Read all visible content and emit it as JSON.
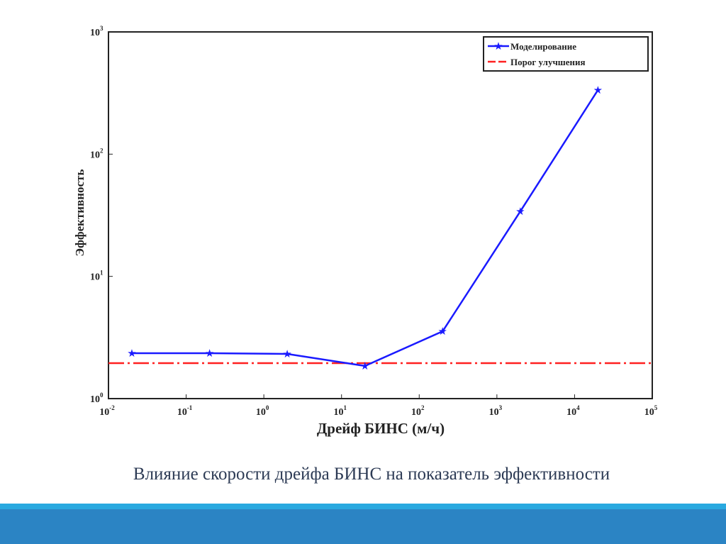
{
  "chart_data": {
    "type": "line",
    "xscale": "log",
    "yscale": "log",
    "xlabel": "Дрейф БИНС (м/ч)",
    "ylabel": "Эффективность",
    "xlim": [
      0.01,
      100000
    ],
    "ylim": [
      1,
      1000
    ],
    "x_tick_exponents": [
      "-2",
      "-1",
      "0",
      "1",
      "2",
      "3",
      "4",
      "5"
    ],
    "y_tick_exponents": [
      "0",
      "1",
      "2",
      "3"
    ],
    "tick_base": "10",
    "legend_position": "top-right",
    "series": [
      {
        "name": "Моделирование",
        "color": "#1a1aff",
        "marker": "star",
        "x": [
          0.02,
          0.2,
          2,
          20,
          200,
          2000,
          20000
        ],
        "y": [
          2.35,
          2.35,
          2.32,
          1.85,
          3.55,
          34,
          335
        ]
      },
      {
        "name": "Порог улучшения",
        "color": "#ff2020",
        "style": "dashdot",
        "x": [
          0.01,
          100000
        ],
        "y": [
          1.95,
          1.95
        ]
      }
    ]
  },
  "caption": "Влияние скорости дрейфа БИНС на показатель эффективности"
}
